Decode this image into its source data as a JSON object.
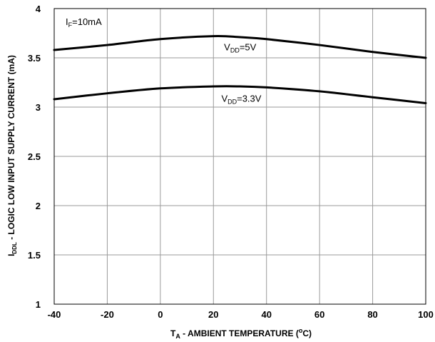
{
  "chart_data": {
    "type": "line",
    "title": "",
    "xlabel": {
      "main": "T",
      "sub": "A",
      "rest": " - AMBIENT TEMPERATURE  (",
      "sup": "o",
      "end": "C)"
    },
    "ylabel": {
      "main": "I",
      "sub": "DDL",
      "rest": " - LOGIC LOW INPUT SUPPLY CURRENT (mA)"
    },
    "xlim": [
      -40,
      100
    ],
    "ylim": [
      1,
      4
    ],
    "xticks": [
      -40,
      -20,
      0,
      20,
      40,
      60,
      80,
      100
    ],
    "yticks": [
      1,
      1.5,
      2,
      2.5,
      3,
      3.5,
      4
    ],
    "ytick_labels": [
      "1",
      "1.5",
      "2",
      "2.5",
      "3",
      "3.5",
      "4"
    ],
    "grid": true,
    "line_color": "#000000",
    "annotations": [
      {
        "main": "I",
        "sub": "F",
        "rest": "=10mA"
      }
    ],
    "series": [
      {
        "name": {
          "main": "V",
          "sub": "DD",
          "rest": "=5V"
        },
        "x": [
          -40,
          -20,
          0,
          20,
          30,
          40,
          60,
          80,
          100
        ],
        "y": [
          3.58,
          3.63,
          3.69,
          3.72,
          3.71,
          3.69,
          3.63,
          3.56,
          3.5
        ]
      },
      {
        "name": {
          "main": "V",
          "sub": "DD",
          "rest": "=3.3V"
        },
        "x": [
          -40,
          -20,
          0,
          20,
          30,
          40,
          60,
          80,
          100
        ],
        "y": [
          3.08,
          3.14,
          3.19,
          3.21,
          3.21,
          3.2,
          3.16,
          3.1,
          3.04
        ]
      }
    ]
  }
}
